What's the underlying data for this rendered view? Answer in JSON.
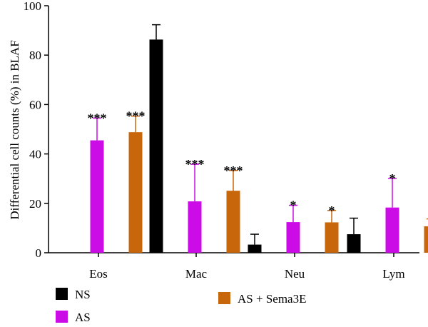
{
  "chart_data": {
    "type": "bar",
    "ylabel": "Differential cell counts (%) in BLAF",
    "ylim": [
      0,
      100
    ],
    "yticks": [
      0,
      20,
      40,
      60,
      80,
      100
    ],
    "categories": [
      "Eos",
      "Mac",
      "Neu",
      "Lym"
    ],
    "series": [
      {
        "name": "NS",
        "color": "#000000",
        "values": [
          0,
          86.3,
          3.3,
          7.5
        ],
        "errors": [
          0,
          6,
          4.2,
          6.5
        ],
        "significance": [
          "",
          "",
          "",
          ""
        ]
      },
      {
        "name": "AS",
        "color": "#CC0CE6",
        "values": [
          45.5,
          20.8,
          12.4,
          18.3
        ],
        "errors": [
          9,
          15,
          6.8,
          11.8
        ],
        "significance": [
          "***",
          "***",
          "*",
          "*"
        ]
      },
      {
        "name": "AS + Sema3E",
        "color": "#C8660B",
        "values": [
          48.8,
          25.1,
          12.3,
          10.7
        ],
        "errors": [
          6.5,
          8.2,
          4.8,
          3
        ],
        "significance": [
          "***",
          "***",
          "*",
          ""
        ]
      }
    ],
    "legend": {
      "placement": "bottom",
      "entries": [
        "NS",
        "AS",
        "AS + Sema3E"
      ]
    }
  }
}
